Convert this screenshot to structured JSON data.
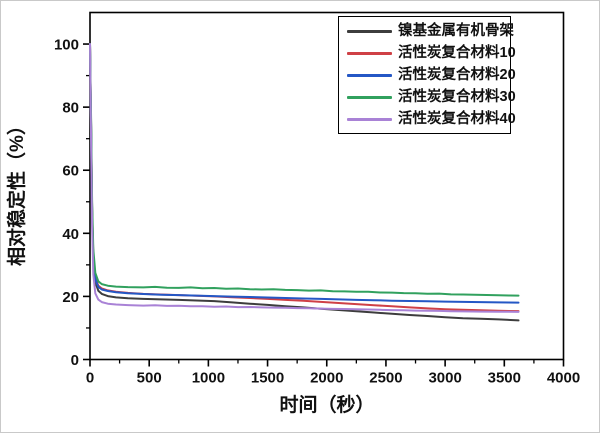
{
  "chart_data": {
    "type": "line",
    "xlabel": "时间（秒）",
    "ylabel": "相对稳定性（%）",
    "xlim": [
      0,
      4000
    ],
    "ylim": [
      0,
      110
    ],
    "x_major_ticks": [
      0,
      500,
      1000,
      1500,
      2000,
      2500,
      3000,
      3500,
      4000
    ],
    "x_minor_step": 250,
    "y_major_ticks": [
      0,
      20,
      40,
      60,
      80,
      100
    ],
    "y_minor_step": 10,
    "grid": false,
    "legend_position": "top-right-inside",
    "series": [
      {
        "name": "镍基金属有机骨架",
        "color": "#3d3d3d",
        "points": [
          [
            0,
            100
          ],
          [
            10,
            70
          ],
          [
            18,
            46
          ],
          [
            28,
            31
          ],
          [
            45,
            24.5
          ],
          [
            70,
            21.8
          ],
          [
            100,
            20.8
          ],
          [
            150,
            20.1
          ],
          [
            220,
            19.7
          ],
          [
            320,
            19.4
          ],
          [
            450,
            19.2
          ],
          [
            600,
            19.05
          ],
          [
            750,
            18.9
          ],
          [
            900,
            18.7
          ],
          [
            1050,
            18.5
          ],
          [
            1200,
            18.1
          ],
          [
            1350,
            17.7
          ],
          [
            1500,
            17.3
          ],
          [
            1650,
            16.9
          ],
          [
            1800,
            16.5
          ],
          [
            1950,
            16.1
          ],
          [
            2100,
            15.7
          ],
          [
            2250,
            15.3
          ],
          [
            2400,
            14.9
          ],
          [
            2550,
            14.5
          ],
          [
            2700,
            14.1
          ],
          [
            2850,
            13.8
          ],
          [
            3000,
            13.4
          ],
          [
            3150,
            13.1
          ],
          [
            3300,
            12.9
          ],
          [
            3450,
            12.7
          ],
          [
            3620,
            12.4
          ]
        ]
      },
      {
        "name": "活性炭复合材料10",
        "color": "#cf4046",
        "points": [
          [
            0,
            100
          ],
          [
            10,
            72
          ],
          [
            18,
            48
          ],
          [
            28,
            33
          ],
          [
            45,
            26
          ],
          [
            70,
            23.4
          ],
          [
            100,
            22.5
          ],
          [
            150,
            21.9
          ],
          [
            220,
            21.5
          ],
          [
            320,
            21.1
          ],
          [
            450,
            20.8
          ],
          [
            600,
            20.6
          ],
          [
            750,
            20.4
          ],
          [
            900,
            20.2
          ],
          [
            1050,
            20.0
          ],
          [
            1200,
            19.75
          ],
          [
            1350,
            19.5
          ],
          [
            1500,
            19.2
          ],
          [
            1650,
            18.9
          ],
          [
            1800,
            18.6
          ],
          [
            1950,
            18.25
          ],
          [
            2100,
            17.9
          ],
          [
            2250,
            17.55
          ],
          [
            2400,
            17.2
          ],
          [
            2550,
            16.85
          ],
          [
            2700,
            16.5
          ],
          [
            2850,
            16.2
          ],
          [
            3000,
            15.95
          ],
          [
            3150,
            15.75
          ],
          [
            3300,
            15.6
          ],
          [
            3450,
            15.45
          ],
          [
            3620,
            15.35
          ]
        ]
      },
      {
        "name": "活性炭复合材料20",
        "color": "#2457c5",
        "points": [
          [
            0,
            100
          ],
          [
            10,
            71
          ],
          [
            18,
            47
          ],
          [
            28,
            32
          ],
          [
            45,
            25.5
          ],
          [
            70,
            23.0
          ],
          [
            100,
            22.2
          ],
          [
            150,
            21.7
          ],
          [
            220,
            21.3
          ],
          [
            320,
            21.0
          ],
          [
            450,
            20.75
          ],
          [
            600,
            20.55
          ],
          [
            750,
            20.4
          ],
          [
            900,
            20.25
          ],
          [
            1050,
            20.1
          ],
          [
            1200,
            19.95
          ],
          [
            1350,
            19.8
          ],
          [
            1500,
            19.65
          ],
          [
            1650,
            19.5
          ],
          [
            1800,
            19.35
          ],
          [
            1950,
            19.2
          ],
          [
            2100,
            19.05
          ],
          [
            2250,
            18.9
          ],
          [
            2400,
            18.8
          ],
          [
            2550,
            18.65
          ],
          [
            2700,
            18.55
          ],
          [
            2850,
            18.45
          ],
          [
            3000,
            18.35
          ],
          [
            3150,
            18.25
          ],
          [
            3300,
            18.2
          ],
          [
            3450,
            18.1
          ],
          [
            3620,
            18.05
          ]
        ]
      },
      {
        "name": "活性炭复合材料30",
        "color": "#31a15e",
        "points": [
          [
            0,
            100
          ],
          [
            10,
            74
          ],
          [
            18,
            50
          ],
          [
            28,
            35
          ],
          [
            45,
            27.5
          ],
          [
            70,
            24.8
          ],
          [
            100,
            23.9
          ],
          [
            150,
            23.4
          ],
          [
            220,
            23.1
          ],
          [
            320,
            22.95
          ],
          [
            450,
            22.85
          ],
          [
            550,
            23.0
          ],
          [
            650,
            22.75
          ],
          [
            750,
            22.7
          ],
          [
            850,
            22.85
          ],
          [
            950,
            22.6
          ],
          [
            1050,
            22.65
          ],
          [
            1150,
            22.45
          ],
          [
            1250,
            22.5
          ],
          [
            1350,
            22.3
          ],
          [
            1450,
            22.2
          ],
          [
            1550,
            22.3
          ],
          [
            1650,
            22.05
          ],
          [
            1750,
            22.0
          ],
          [
            1850,
            21.85
          ],
          [
            1950,
            21.9
          ],
          [
            2050,
            21.65
          ],
          [
            2150,
            21.6
          ],
          [
            2250,
            21.45
          ],
          [
            2350,
            21.5
          ],
          [
            2450,
            21.25
          ],
          [
            2550,
            21.2
          ],
          [
            2650,
            21.05
          ],
          [
            2750,
            21.0
          ],
          [
            2850,
            20.85
          ],
          [
            2950,
            20.9
          ],
          [
            3050,
            20.65
          ],
          [
            3150,
            20.6
          ],
          [
            3250,
            20.5
          ],
          [
            3350,
            20.45
          ],
          [
            3450,
            20.35
          ],
          [
            3550,
            20.3
          ],
          [
            3620,
            20.25
          ]
        ]
      },
      {
        "name": "活性炭复合材料40",
        "color": "#a982d6",
        "points": [
          [
            0,
            100
          ],
          [
            10,
            66
          ],
          [
            18,
            42
          ],
          [
            28,
            27
          ],
          [
            45,
            21
          ],
          [
            70,
            19.0
          ],
          [
            100,
            18.2
          ],
          [
            150,
            17.7
          ],
          [
            220,
            17.45
          ],
          [
            320,
            17.25
          ],
          [
            450,
            17.1
          ],
          [
            550,
            17.2
          ],
          [
            650,
            17.0
          ],
          [
            750,
            17.05
          ],
          [
            850,
            16.9
          ],
          [
            950,
            16.85
          ],
          [
            1050,
            16.75
          ],
          [
            1150,
            16.8
          ],
          [
            1250,
            16.6
          ],
          [
            1350,
            16.65
          ],
          [
            1450,
            16.5
          ],
          [
            1550,
            16.45
          ],
          [
            1650,
            16.4
          ],
          [
            1750,
            16.3
          ],
          [
            1850,
            16.25
          ],
          [
            1950,
            16.15
          ],
          [
            2050,
            16.05
          ],
          [
            2150,
            16.0
          ],
          [
            2250,
            15.9
          ],
          [
            2350,
            15.85
          ],
          [
            2450,
            15.75
          ],
          [
            2550,
            15.65
          ],
          [
            2650,
            15.6
          ],
          [
            2750,
            15.5
          ],
          [
            2850,
            15.45
          ],
          [
            2950,
            15.4
          ],
          [
            3050,
            15.3
          ],
          [
            3150,
            15.25
          ],
          [
            3300,
            15.2
          ],
          [
            3450,
            15.15
          ],
          [
            3620,
            15.1
          ]
        ]
      }
    ]
  }
}
